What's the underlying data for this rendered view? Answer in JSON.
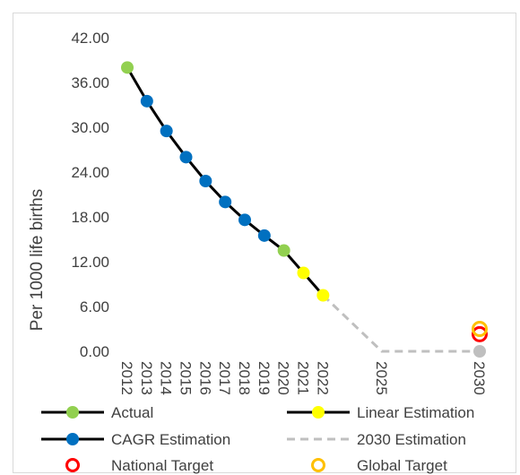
{
  "chart_data": {
    "type": "line",
    "ylabel": "Per 1000 life births",
    "ylim": [
      0,
      42
    ],
    "yticks": [
      "0.00",
      "6.00",
      "12.00",
      "18.00",
      "24.00",
      "30.00",
      "36.00",
      "42.00"
    ],
    "categories": [
      "2012",
      "2013",
      "2014",
      "2015",
      "2016",
      "2017",
      "2018",
      "2019",
      "2020",
      "2021",
      "2022",
      "",
      "",
      "2025",
      "",
      "",
      "",
      "",
      "2030"
    ],
    "category_labels": [
      "2012",
      "2013",
      "2014",
      "2015",
      "2016",
      "2017",
      "2018",
      "2019",
      "2020",
      "2021",
      "2022",
      "2025",
      "2030"
    ],
    "grid": false,
    "legend_position": "bottom",
    "series": [
      {
        "name": "Actual",
        "style": "line-marker",
        "color": "#000000",
        "marker_color": "#92d050",
        "points": [
          {
            "x": "2012",
            "y": 38.0
          },
          {
            "x": "2020",
            "y": 13.5
          }
        ]
      },
      {
        "name": "Linear Estimation",
        "style": "line-marker",
        "color": "#000000",
        "marker_color": "#ffff00",
        "points": [
          {
            "x": "2021",
            "y": 10.5
          },
          {
            "x": "2022",
            "y": 7.5
          }
        ]
      },
      {
        "name": "CAGR Estimation",
        "style": "line-marker",
        "color": "#000000",
        "marker_color": "#0070c0",
        "points": [
          {
            "x": "2013",
            "y": 33.5
          },
          {
            "x": "2014",
            "y": 29.5
          },
          {
            "x": "2015",
            "y": 26.0
          },
          {
            "x": "2016",
            "y": 22.8
          },
          {
            "x": "2017",
            "y": 20.0
          },
          {
            "x": "2018",
            "y": 17.6
          },
          {
            "x": "2019",
            "y": 15.5
          }
        ]
      },
      {
        "name": "2030 Estimation",
        "style": "dashed",
        "color": "#bfbfbf",
        "marker_color": "#bfbfbf",
        "points": [
          {
            "x": "2022",
            "y": 7.5
          },
          {
            "x": "2025",
            "y": 0
          },
          {
            "x": "2030",
            "y": 0
          }
        ]
      },
      {
        "name": "National Target",
        "style": "ring",
        "color": "#ff0000",
        "points": [
          {
            "x": "2030",
            "y": 2.3
          }
        ]
      },
      {
        "name": "Global Target",
        "style": "ring",
        "color": "#ffc000",
        "points": [
          {
            "x": "2030",
            "y": 3.0
          }
        ]
      }
    ]
  }
}
